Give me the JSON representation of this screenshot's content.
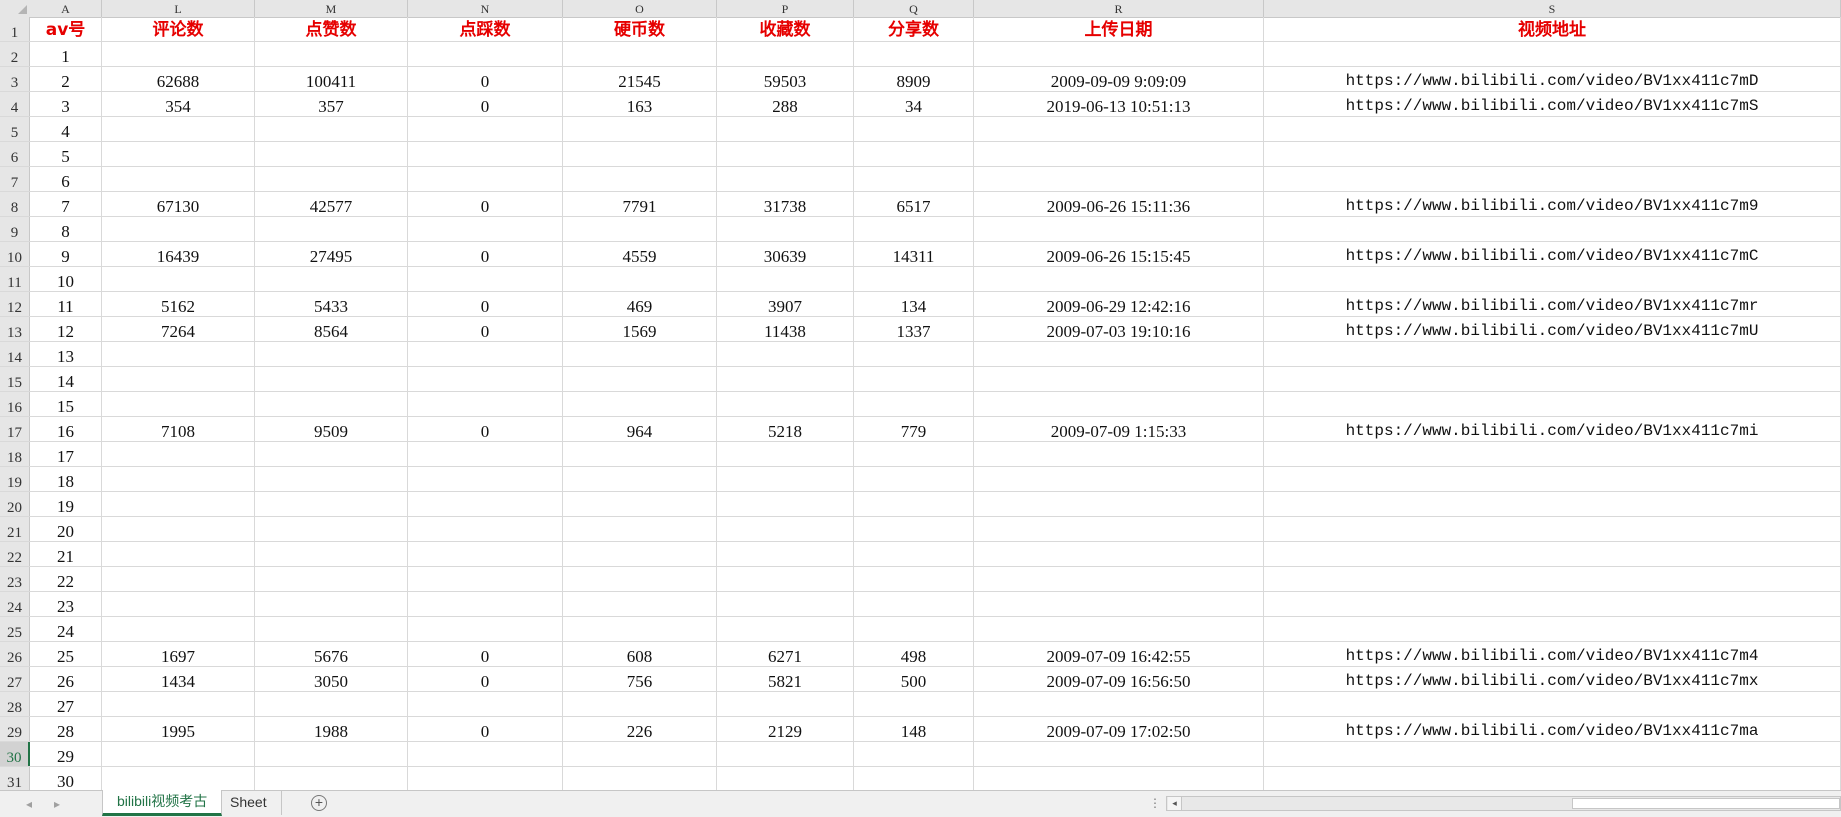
{
  "columns": [
    "A",
    "L",
    "M",
    "N",
    "O",
    "P",
    "Q",
    "R",
    "S"
  ],
  "headers": [
    "av号",
    "评论数",
    "点赞数",
    "点踩数",
    "硬币数",
    "收藏数",
    "分享数",
    "上传日期",
    "视频地址"
  ],
  "row_numbers": [
    "2",
    "3",
    "4",
    "5",
    "6",
    "7",
    "8",
    "9",
    "10",
    "11",
    "12",
    "13",
    "14",
    "15",
    "16",
    "17",
    "18",
    "19",
    "20",
    "21",
    "22",
    "23",
    "24",
    "25",
    "26",
    "27",
    "28",
    "29",
    "30",
    "31"
  ],
  "rows": [
    [
      "1",
      "",
      "",
      "",
      "",
      "",
      "",
      "",
      ""
    ],
    [
      "2",
      "62688",
      "100411",
      "0",
      "21545",
      "59503",
      "8909",
      "2009-09-09  9:09:09",
      "https://www.bilibili.com/video/BV1xx411c7mD"
    ],
    [
      "3",
      "354",
      "357",
      "0",
      "163",
      "288",
      "34",
      "2019-06-13 10:51:13",
      "https://www.bilibili.com/video/BV1xx411c7mS"
    ],
    [
      "4",
      "",
      "",
      "",
      "",
      "",
      "",
      "",
      ""
    ],
    [
      "5",
      "",
      "",
      "",
      "",
      "",
      "",
      "",
      ""
    ],
    [
      "6",
      "",
      "",
      "",
      "",
      "",
      "",
      "",
      ""
    ],
    [
      "7",
      "67130",
      "42577",
      "0",
      "7791",
      "31738",
      "6517",
      "2009-06-26 15:11:36",
      "https://www.bilibili.com/video/BV1xx411c7m9"
    ],
    [
      "8",
      "",
      "",
      "",
      "",
      "",
      "",
      "",
      ""
    ],
    [
      "9",
      "16439",
      "27495",
      "0",
      "4559",
      "30639",
      "14311",
      "2009-06-26 15:15:45",
      "https://www.bilibili.com/video/BV1xx411c7mC"
    ],
    [
      "10",
      "",
      "",
      "",
      "",
      "",
      "",
      "",
      ""
    ],
    [
      "11",
      "5162",
      "5433",
      "0",
      "469",
      "3907",
      "134",
      "2009-06-29 12:42:16",
      "https://www.bilibili.com/video/BV1xx411c7mr"
    ],
    [
      "12",
      "7264",
      "8564",
      "0",
      "1569",
      "11438",
      "1337",
      "2009-07-03 19:10:16",
      "https://www.bilibili.com/video/BV1xx411c7mU"
    ],
    [
      "13",
      "",
      "",
      "",
      "",
      "",
      "",
      "",
      ""
    ],
    [
      "14",
      "",
      "",
      "",
      "",
      "",
      "",
      "",
      ""
    ],
    [
      "15",
      "",
      "",
      "",
      "",
      "",
      "",
      "",
      ""
    ],
    [
      "16",
      "7108",
      "9509",
      "0",
      "964",
      "5218",
      "779",
      "2009-07-09  1:15:33",
      "https://www.bilibili.com/video/BV1xx411c7mi"
    ],
    [
      "17",
      "",
      "",
      "",
      "",
      "",
      "",
      "",
      ""
    ],
    [
      "18",
      "",
      "",
      "",
      "",
      "",
      "",
      "",
      ""
    ],
    [
      "19",
      "",
      "",
      "",
      "",
      "",
      "",
      "",
      ""
    ],
    [
      "20",
      "",
      "",
      "",
      "",
      "",
      "",
      "",
      ""
    ],
    [
      "21",
      "",
      "",
      "",
      "",
      "",
      "",
      "",
      ""
    ],
    [
      "22",
      "",
      "",
      "",
      "",
      "",
      "",
      "",
      ""
    ],
    [
      "23",
      "",
      "",
      "",
      "",
      "",
      "",
      "",
      ""
    ],
    [
      "24",
      "",
      "",
      "",
      "",
      "",
      "",
      "",
      ""
    ],
    [
      "25",
      "1697",
      "5676",
      "0",
      "608",
      "6271",
      "498",
      "2009-07-09 16:42:55",
      "https://www.bilibili.com/video/BV1xx411c7m4"
    ],
    [
      "26",
      "1434",
      "3050",
      "0",
      "756",
      "5821",
      "500",
      "2009-07-09 16:56:50",
      "https://www.bilibili.com/video/BV1xx411c7mx"
    ],
    [
      "27",
      "",
      "",
      "",
      "",
      "",
      "",
      "",
      ""
    ],
    [
      "28",
      "1995",
      "1988",
      "0",
      "226",
      "2129",
      "148",
      "2009-07-09 17:02:50",
      "https://www.bilibili.com/video/BV1xx411c7ma"
    ],
    [
      "29",
      "",
      "",
      "",
      "",
      "",
      "",
      "",
      ""
    ],
    [
      "30",
      "",
      "",
      "",
      "",
      "",
      "",
      "",
      ""
    ]
  ],
  "active_row": "30",
  "sheet_tabs": [
    "bilibili视频考古",
    "Sheet"
  ],
  "active_tab": "bilibili视频考古",
  "colors": {
    "header_text": "#e60000",
    "accent": "#217346"
  }
}
